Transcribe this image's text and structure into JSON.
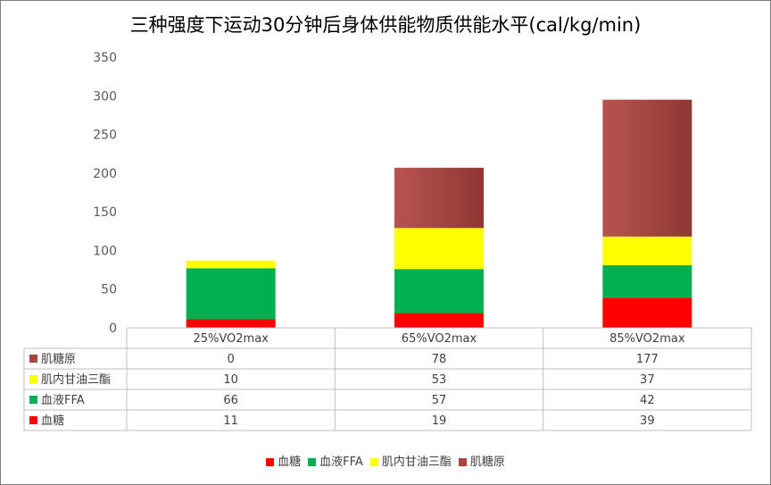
{
  "chart_data": {
    "type": "bar",
    "stacked": true,
    "title": "三种强度下运动30分钟后身体供能物质供能水平(cal/kg/min)",
    "categories": [
      "25%VO2max",
      "65%VO2max",
      "85%VO2max"
    ],
    "ylim": [
      0,
      350
    ],
    "yticks": [
      0,
      50,
      100,
      150,
      200,
      250,
      300,
      350
    ],
    "grid": false,
    "legend_position": "bottom",
    "data_table": true,
    "series": [
      {
        "name": "血糖",
        "values": [
          11,
          19,
          39
        ],
        "color": "#ff0000"
      },
      {
        "name": "血液FFA",
        "values": [
          66,
          57,
          42
        ],
        "color": "#00b050"
      },
      {
        "name": "肌内甘油三酯",
        "values": [
          10,
          53,
          37
        ],
        "color": "#ffff00"
      },
      {
        "name": "肌糖原",
        "values": [
          0,
          78,
          177
        ],
        "color": "#a9443f"
      }
    ]
  }
}
